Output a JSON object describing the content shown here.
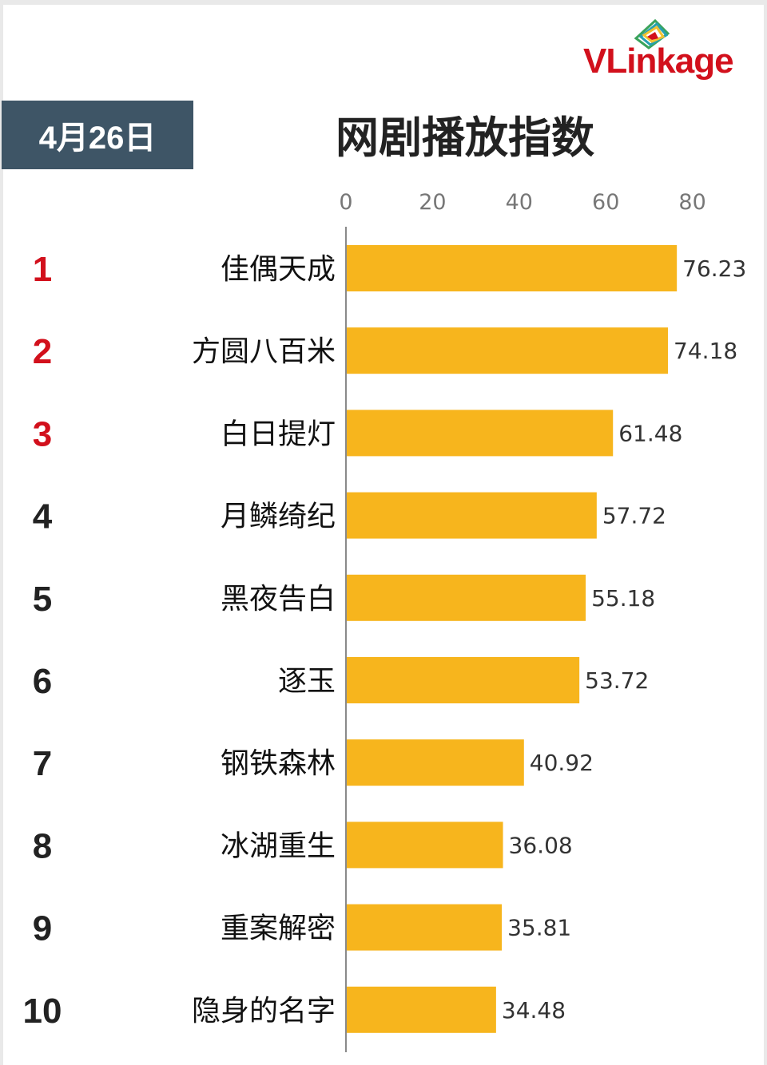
{
  "brand": {
    "name": "VLinkage",
    "colors": {
      "primary": "#d2101c",
      "logo_green": "#3aa35b",
      "logo_teal": "#26a0b0",
      "logo_yellow": "#f2c230"
    }
  },
  "header": {
    "date": "4月26日",
    "date_bg": "#3e5566"
  },
  "chart_data": {
    "type": "bar",
    "orientation": "horizontal",
    "title": "网剧播放指数",
    "categories": [
      "佳偶天成",
      "方圆八百米",
      "白日提灯",
      "月鳞绮纪",
      "黑夜告白",
      "逐玉",
      "钢铁森林",
      "冰湖重生",
      "重案解密",
      "隐身的名字"
    ],
    "ranks": [
      "1",
      "2",
      "3",
      "4",
      "5",
      "6",
      "7",
      "8",
      "9",
      "10"
    ],
    "values": [
      76.23,
      74.18,
      61.48,
      57.72,
      55.18,
      53.72,
      40.92,
      36.08,
      35.81,
      34.48
    ],
    "value_labels": [
      "76.23",
      "74.18",
      "61.48",
      "57.72",
      "55.18",
      "53.72",
      "40.92",
      "36.08",
      "35.81",
      "34.48"
    ],
    "x_ticks": [
      "0",
      "20",
      "40",
      "60",
      "80"
    ],
    "xlim": [
      0,
      80
    ],
    "axis_position": "top",
    "grid": false,
    "legend": "none",
    "colors": {
      "bar": "#f7b51d",
      "top3_rank": "#d2101c",
      "other_rank": "#222222"
    }
  }
}
